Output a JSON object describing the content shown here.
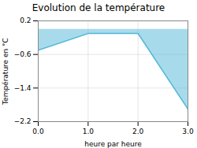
{
  "chart_data": {
    "type": "area",
    "title": "Evolution de la température",
    "xlabel": "heure par heure",
    "ylabel": "Température en °C",
    "x": [
      0,
      1,
      2,
      3
    ],
    "values": [
      -0.5,
      -0.1,
      -0.1,
      -1.9
    ],
    "color": "#50b8d8",
    "xlim": [
      0,
      3
    ],
    "ylim": [
      -2.2,
      0.2
    ],
    "xticks": [
      0,
      1,
      2,
      3
    ],
    "yticks": [
      0.2,
      -0.6,
      -1.4,
      -2.2
    ],
    "grid": true
  }
}
